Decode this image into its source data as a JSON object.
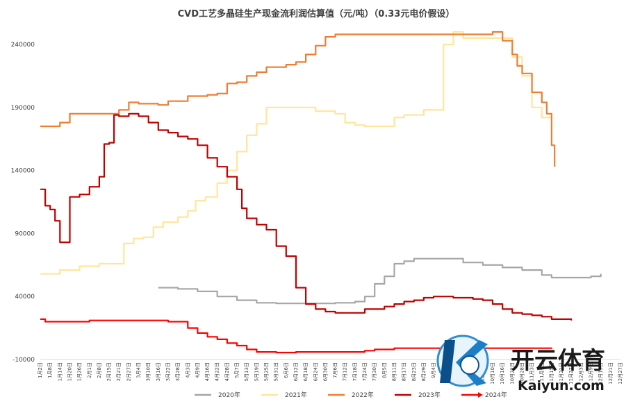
{
  "chart_data": {
    "type": "line",
    "title": "CVD工艺多晶硅生产现金流利润估算值（元/吨）（0.33元电价假设）",
    "xlabel": "",
    "ylabel": "",
    "ylim": [
      -10000,
      250000
    ],
    "yticks": [
      -10000,
      40000,
      90000,
      140000,
      190000,
      240000
    ],
    "x_categories": [
      "1月2日",
      "1月8日",
      "1月14日",
      "1月20日",
      "1月26日",
      "2月1日",
      "2月8日",
      "2月15日",
      "2月21日",
      "2月27日",
      "3月4日",
      "3月10日",
      "3月16日",
      "3月22日",
      "3月28日",
      "4月3日",
      "4月9日",
      "4月16日",
      "4月22日",
      "4月28日",
      "5月7日",
      "5月13日",
      "5月19日",
      "5月25日",
      "5月31日",
      "6月6日",
      "6月12日",
      "6月18日",
      "6月24日",
      "6月30日",
      "7月6日",
      "7月12日",
      "7月18日",
      "7月24日",
      "7月30日",
      "8月5日",
      "8月11日",
      "8月17日",
      "8月23日",
      "8月29日",
      "9月4日",
      "9月10日",
      "9月16日",
      "9月22日",
      "9月28日",
      "10月4日",
      "10月10日",
      "10月16日",
      "10月22日",
      "10月28日",
      "11月3日",
      "11月9日",
      "11月15日",
      "11月21日",
      "11月27日",
      "12月3日",
      "12月9日",
      "12月15日",
      "12月21日",
      "12月27日"
    ],
    "grid": false,
    "legend_position": "bottom",
    "series": [
      {
        "name": "2020年",
        "color": "#a6a6a6",
        "points": [
          [
            12,
            47000
          ],
          [
            14,
            46000
          ],
          [
            16,
            44000
          ],
          [
            18,
            40000
          ],
          [
            20,
            37000
          ],
          [
            21,
            37000
          ],
          [
            22,
            35000
          ],
          [
            24,
            34500
          ],
          [
            28,
            34500
          ],
          [
            30,
            35000
          ],
          [
            32,
            36000
          ],
          [
            33,
            40000
          ],
          [
            34,
            50000
          ],
          [
            35,
            56000
          ],
          [
            36,
            66000
          ],
          [
            37,
            68000
          ],
          [
            38,
            70000
          ],
          [
            41,
            70000
          ],
          [
            43,
            67000
          ],
          [
            45,
            65000
          ],
          [
            47,
            63000
          ],
          [
            49,
            61000
          ],
          [
            51,
            57000
          ],
          [
            52,
            55000
          ],
          [
            54,
            55000
          ],
          [
            56,
            56000
          ],
          [
            57,
            58000
          ]
        ]
      },
      {
        "name": "2021年",
        "color": "#ffe699",
        "points": [
          [
            0,
            58000
          ],
          [
            1,
            58000
          ],
          [
            2,
            61000
          ],
          [
            4,
            64000
          ],
          [
            6,
            66000
          ],
          [
            8,
            66000
          ],
          [
            8.5,
            82000
          ],
          [
            9.5,
            86000
          ],
          [
            10.5,
            87000
          ],
          [
            11.5,
            95000
          ],
          [
            12.5,
            99000
          ],
          [
            14,
            103000
          ],
          [
            15,
            108000
          ],
          [
            15.8,
            116000
          ],
          [
            16.8,
            119000
          ],
          [
            18,
            130000
          ],
          [
            19,
            140000
          ],
          [
            20,
            155000
          ],
          [
            21,
            168000
          ],
          [
            22,
            177000
          ],
          [
            23,
            190000
          ],
          [
            25,
            190000
          ],
          [
            27,
            190000
          ],
          [
            28,
            187000
          ],
          [
            29,
            187000
          ],
          [
            30,
            185000
          ],
          [
            31,
            178000
          ],
          [
            32,
            176000
          ],
          [
            33,
            175000
          ],
          [
            35,
            175000
          ],
          [
            36,
            182000
          ],
          [
            37,
            184000
          ],
          [
            38,
            184000
          ],
          [
            39,
            188000
          ],
          [
            40,
            188000
          ],
          [
            41,
            240000
          ],
          [
            42,
            250000
          ],
          [
            43,
            245000
          ],
          [
            44,
            245000
          ],
          [
            46,
            245000
          ],
          [
            47,
            245000
          ],
          [
            48,
            230000
          ],
          [
            49,
            215000
          ],
          [
            50,
            190000
          ],
          [
            51,
            182000
          ],
          [
            52,
            178000
          ]
        ]
      },
      {
        "name": "2022年",
        "color": "#ed7d31",
        "points": [
          [
            0,
            175000
          ],
          [
            1,
            175000
          ],
          [
            2,
            178000
          ],
          [
            3,
            185000
          ],
          [
            5,
            185000
          ],
          [
            7,
            185000
          ],
          [
            8,
            188000
          ],
          [
            9,
            194000
          ],
          [
            10,
            193000
          ],
          [
            12,
            192000
          ],
          [
            13,
            195000
          ],
          [
            15,
            199000
          ],
          [
            17,
            200000
          ],
          [
            18,
            201000
          ],
          [
            19,
            209000
          ],
          [
            20,
            210000
          ],
          [
            21,
            215000
          ],
          [
            22,
            218000
          ],
          [
            23,
            222000
          ],
          [
            25,
            224000
          ],
          [
            26,
            226000
          ],
          [
            27,
            232000
          ],
          [
            28,
            239000
          ],
          [
            29,
            246000
          ],
          [
            30,
            248000
          ],
          [
            31,
            248000
          ],
          [
            46,
            250000
          ],
          [
            47,
            243000
          ],
          [
            48,
            232000
          ],
          [
            48.5,
            223000
          ],
          [
            49,
            217000
          ],
          [
            50,
            202000
          ],
          [
            51,
            194000
          ],
          [
            51.5,
            185000
          ],
          [
            52,
            160000
          ],
          [
            52.3,
            143000
          ]
        ]
      },
      {
        "name": "2023年",
        "color": "#c00000",
        "points": [
          [
            0,
            125000
          ],
          [
            0.5,
            112000
          ],
          [
            1,
            109000
          ],
          [
            1.5,
            100000
          ],
          [
            2,
            83000
          ],
          [
            2.5,
            83000
          ],
          [
            3,
            119000
          ],
          [
            4,
            121000
          ],
          [
            5,
            127000
          ],
          [
            6,
            135000
          ],
          [
            6.5,
            161000
          ],
          [
            7,
            162000
          ],
          [
            7.5,
            184000
          ],
          [
            8,
            183000
          ],
          [
            9,
            185000
          ],
          [
            10,
            183000
          ],
          [
            11,
            178000
          ],
          [
            12,
            172000
          ],
          [
            13,
            170000
          ],
          [
            14,
            167000
          ],
          [
            15,
            165000
          ],
          [
            16,
            160000
          ],
          [
            17,
            150000
          ],
          [
            18,
            143000
          ],
          [
            19,
            135000
          ],
          [
            20,
            125000
          ],
          [
            20.5,
            110000
          ],
          [
            21,
            102000
          ],
          [
            22,
            97000
          ],
          [
            23,
            93000
          ],
          [
            24,
            80000
          ],
          [
            25,
            72000
          ],
          [
            26,
            47000
          ],
          [
            27,
            34000
          ],
          [
            28,
            30000
          ],
          [
            29,
            28000
          ],
          [
            30,
            27000
          ],
          [
            32,
            27000
          ],
          [
            33,
            30000
          ],
          [
            34,
            30000
          ],
          [
            35,
            32000
          ],
          [
            36,
            34000
          ],
          [
            37,
            36000
          ],
          [
            38,
            37000
          ],
          [
            39,
            39000
          ],
          [
            40,
            40000
          ],
          [
            42,
            39000
          ],
          [
            44,
            38000
          ],
          [
            45,
            37000
          ],
          [
            46,
            34000
          ],
          [
            47,
            30000
          ],
          [
            48,
            27000
          ],
          [
            49,
            26000
          ],
          [
            50,
            25000
          ],
          [
            51,
            24000
          ],
          [
            52,
            22000
          ],
          [
            53,
            22000
          ],
          [
            54,
            21000
          ]
        ]
      },
      {
        "name": "2024年",
        "color": "#ff0000",
        "points": [
          [
            0,
            22000
          ],
          [
            0.5,
            20000
          ],
          [
            2,
            20000
          ],
          [
            4,
            20000
          ],
          [
            5,
            21000
          ],
          [
            8,
            21000
          ],
          [
            10,
            21000
          ],
          [
            12,
            21000
          ],
          [
            13,
            20000
          ],
          [
            14,
            20000
          ],
          [
            15,
            15000
          ],
          [
            16,
            11000
          ],
          [
            17,
            8000
          ],
          [
            18,
            6000
          ],
          [
            19,
            3000
          ],
          [
            20,
            1000
          ],
          [
            21,
            -2000
          ],
          [
            22,
            -4000
          ],
          [
            24,
            -4500
          ],
          [
            26,
            -4000
          ],
          [
            28,
            -4000
          ],
          [
            30,
            -4000
          ],
          [
            32,
            -4000
          ],
          [
            33,
            -3000
          ],
          [
            34,
            -2000
          ],
          [
            36,
            -1000
          ],
          [
            38,
            -1000
          ],
          [
            40,
            -1000
          ],
          [
            45,
            -1000
          ],
          [
            50,
            -1000
          ],
          [
            52,
            -1500
          ]
        ]
      }
    ]
  },
  "watermark": {
    "main": "开云体育",
    "sub": "Kaiyun.com"
  }
}
